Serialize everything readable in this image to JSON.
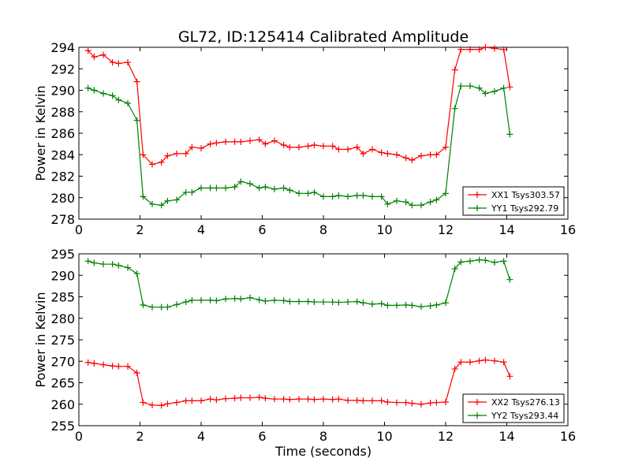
{
  "title": "GL72, ID:125414 Calibrated Amplitude",
  "xlabel": "Time (seconds)",
  "chart_data": [
    {
      "type": "line",
      "ylabel": "Power in Kelvin",
      "xlim": [
        0,
        16
      ],
      "ylim": [
        278,
        294
      ],
      "xticks": [
        0,
        2,
        4,
        6,
        8,
        10,
        12,
        14,
        16
      ],
      "yticks": [
        278,
        280,
        282,
        284,
        286,
        288,
        290,
        292,
        294
      ],
      "legend_position": "lower-right",
      "grid": false,
      "x": [
        0.3,
        0.5,
        0.8,
        1.1,
        1.3,
        1.6,
        1.9,
        2.1,
        2.4,
        2.7,
        2.9,
        3.2,
        3.5,
        3.7,
        4.0,
        4.3,
        4.5,
        4.8,
        5.1,
        5.3,
        5.6,
        5.9,
        6.1,
        6.4,
        6.7,
        6.9,
        7.2,
        7.5,
        7.7,
        8.0,
        8.3,
        8.5,
        8.8,
        9.1,
        9.3,
        9.6,
        9.9,
        10.1,
        10.4,
        10.7,
        10.9,
        11.2,
        11.5,
        11.7,
        12.0,
        12.3,
        12.5,
        12.8,
        13.1,
        13.3,
        13.6,
        13.9,
        14.1
      ],
      "series": [
        {
          "name": "XX1 Tsys303.57",
          "color": "#ff0000",
          "values": [
            293.7,
            293.1,
            293.3,
            292.6,
            292.5,
            292.6,
            290.8,
            284.0,
            283.1,
            283.3,
            283.9,
            284.1,
            284.1,
            284.7,
            284.6,
            285.0,
            285.1,
            285.2,
            285.2,
            285.2,
            285.3,
            285.4,
            285.0,
            285.3,
            284.9,
            284.7,
            284.7,
            284.8,
            284.9,
            284.8,
            284.8,
            284.5,
            284.5,
            284.7,
            284.1,
            284.5,
            284.2,
            284.1,
            284.0,
            283.7,
            283.5,
            283.9,
            284.0,
            284.0,
            284.7,
            291.9,
            293.8,
            293.8,
            293.8,
            294.0,
            293.9,
            293.8,
            290.3
          ]
        },
        {
          "name": "YY1 Tsys292.79",
          "color": "#008000",
          "values": [
            290.2,
            290.0,
            289.7,
            289.5,
            289.1,
            288.8,
            287.2,
            280.1,
            279.4,
            279.3,
            279.7,
            279.8,
            280.5,
            280.5,
            280.9,
            280.9,
            280.9,
            280.9,
            281.0,
            281.5,
            281.3,
            280.9,
            281.0,
            280.8,
            280.9,
            280.7,
            280.4,
            280.4,
            280.5,
            280.1,
            280.1,
            280.2,
            280.1,
            280.2,
            280.2,
            280.1,
            280.1,
            279.4,
            279.7,
            279.6,
            279.3,
            279.3,
            279.6,
            279.8,
            280.4,
            288.3,
            290.4,
            290.4,
            290.2,
            289.7,
            289.9,
            290.2,
            285.9
          ]
        }
      ]
    },
    {
      "type": "line",
      "ylabel": "Power in Kelvin",
      "xlim": [
        0,
        16
      ],
      "ylim": [
        255,
        295
      ],
      "xticks": [
        0,
        2,
        4,
        6,
        8,
        10,
        12,
        14,
        16
      ],
      "yticks": [
        255,
        260,
        265,
        270,
        275,
        280,
        285,
        290,
        295
      ],
      "legend_position": "lower-right",
      "grid": false,
      "x": [
        0.3,
        0.5,
        0.8,
        1.1,
        1.3,
        1.6,
        1.9,
        2.1,
        2.4,
        2.7,
        2.9,
        3.2,
        3.5,
        3.7,
        4.0,
        4.3,
        4.5,
        4.8,
        5.1,
        5.3,
        5.6,
        5.9,
        6.1,
        6.4,
        6.7,
        6.9,
        7.2,
        7.5,
        7.7,
        8.0,
        8.3,
        8.5,
        8.8,
        9.1,
        9.3,
        9.6,
        9.9,
        10.1,
        10.4,
        10.7,
        10.9,
        11.2,
        11.5,
        11.7,
        12.0,
        12.3,
        12.5,
        12.8,
        13.1,
        13.3,
        13.6,
        13.9,
        14.1
      ],
      "series": [
        {
          "name": "XX2 Tsys276.13",
          "color": "#ff0000",
          "values": [
            269.7,
            269.5,
            269.2,
            268.9,
            268.8,
            268.8,
            267.3,
            260.4,
            259.8,
            259.7,
            260.1,
            260.4,
            260.8,
            260.8,
            260.8,
            261.2,
            261.0,
            261.3,
            261.4,
            261.5,
            261.5,
            261.6,
            261.4,
            261.2,
            261.2,
            261.1,
            261.2,
            261.2,
            261.1,
            261.2,
            261.1,
            261.2,
            260.9,
            260.9,
            260.8,
            260.8,
            260.8,
            260.5,
            260.4,
            260.4,
            260.2,
            260.0,
            260.3,
            260.4,
            260.5,
            268.2,
            269.8,
            269.8,
            270.1,
            270.3,
            270.1,
            269.8,
            266.5
          ]
        },
        {
          "name": "YY2 Tsys293.44",
          "color": "#008000",
          "values": [
            293.3,
            292.9,
            292.6,
            292.6,
            292.3,
            291.8,
            290.4,
            283.1,
            282.6,
            282.6,
            282.6,
            283.2,
            283.8,
            284.2,
            284.2,
            284.2,
            284.1,
            284.5,
            284.6,
            284.5,
            284.8,
            284.3,
            284.0,
            284.2,
            284.1,
            283.9,
            283.9,
            283.9,
            283.8,
            283.8,
            283.8,
            283.7,
            283.8,
            283.9,
            283.6,
            283.3,
            283.4,
            283.0,
            283.0,
            283.1,
            283.0,
            282.7,
            282.9,
            283.1,
            283.6,
            291.5,
            293.1,
            293.3,
            293.6,
            293.5,
            293.0,
            293.3,
            289.0
          ]
        }
      ]
    }
  ]
}
